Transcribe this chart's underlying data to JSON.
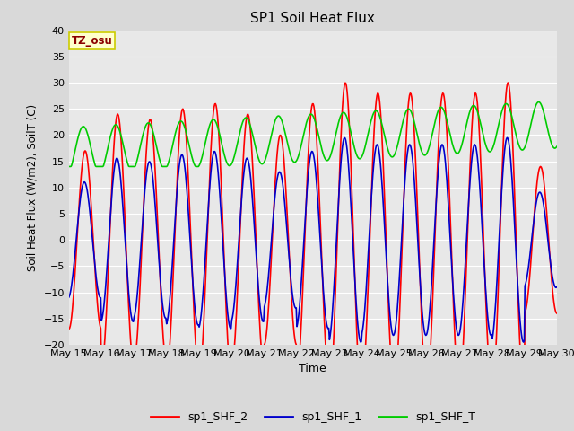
{
  "title": "SP1 Soil Heat Flux",
  "xlabel": "Time",
  "ylabel": "Soil Heat Flux (W/m2), SoilT (C)",
  "ylim": [
    -20,
    40
  ],
  "yticks": [
    -20,
    -15,
    -10,
    -5,
    0,
    5,
    10,
    15,
    20,
    25,
    30,
    35,
    40
  ],
  "xtick_labels": [
    "May 15",
    "May 16",
    "May 17",
    "May 18",
    "May 19",
    "May 20",
    "May 21",
    "May 22",
    "May 23",
    "May 24",
    "May 25",
    "May 26",
    "May 27",
    "May 28",
    "May 29",
    "May 30"
  ],
  "color_shf2": "#ff0000",
  "color_shf1": "#0000cc",
  "color_shft": "#00cc00",
  "legend_labels": [
    "sp1_SHF_2",
    "sp1_SHF_1",
    "sp1_SHF_T"
  ],
  "annotation_text": "TZ_osu",
  "annotation_color": "#8b0000",
  "annotation_bg": "#ffffcc",
  "annotation_border": "#cccc00",
  "fig_bg": "#d9d9d9",
  "plot_bg": "#e8e8e8",
  "grid_color": "#ffffff",
  "line_width": 1.2,
  "n_days": 15,
  "pts_per_day": 48
}
